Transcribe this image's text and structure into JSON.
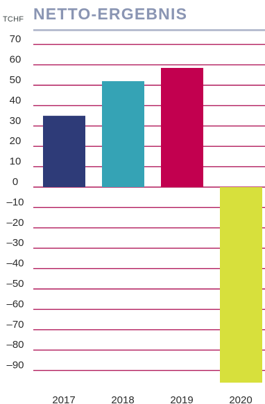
{
  "header": {
    "unit": "TCHF",
    "title": "NETTO-ERGEBNIS"
  },
  "colors": {
    "gridline": "#b0185a",
    "title": "#8a95b3",
    "title_rule": "#b7bdd0"
  },
  "chart_data": {
    "type": "bar",
    "title": "NETTO-ERGEBNIS",
    "ylabel": "TCHF",
    "xlabel": "",
    "categories": [
      "2017",
      "2018",
      "2019",
      "2020"
    ],
    "values": [
      35,
      52,
      58.5,
      -96
    ],
    "bar_colors": [
      "#2e3b78",
      "#35a3b5",
      "#c2004f",
      "#d7e03c"
    ],
    "y_ticks": [
      70,
      60,
      50,
      40,
      30,
      20,
      10,
      0,
      -10,
      -20,
      -30,
      -40,
      -50,
      -60,
      -70,
      -80,
      -90
    ],
    "y_tick_labels": [
      "70",
      "60",
      "50",
      "40",
      "30",
      "20",
      "10",
      "0",
      "–10",
      "–20",
      "–30",
      "–40",
      "–50",
      "–60",
      "–70",
      "–80",
      "–90"
    ],
    "ylim": [
      -96,
      70
    ],
    "grid": true,
    "legend": "none"
  }
}
